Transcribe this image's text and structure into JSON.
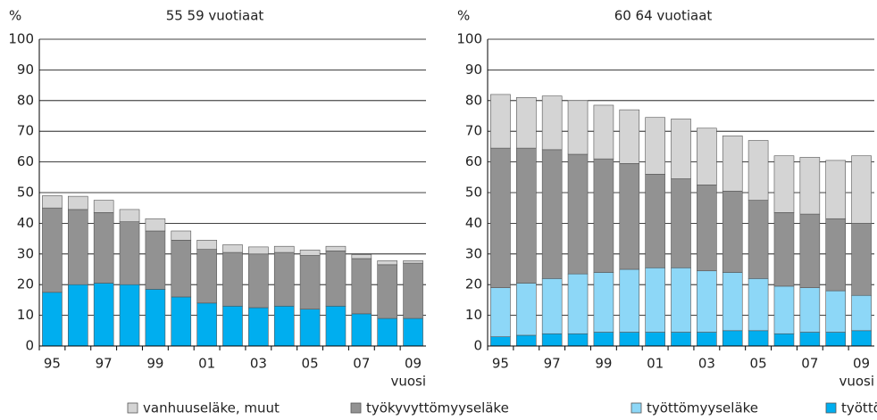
{
  "chart_data": [
    {
      "type": "stacked_bar",
      "title": "55 59 vuotiaat",
      "ylabel": "%",
      "xlabel": "vuosi",
      "categories": [
        "95",
        null,
        "97",
        null,
        "99",
        null,
        "01",
        null,
        "03",
        null,
        "05",
        null,
        "07",
        null,
        "09"
      ],
      "ylim": [
        0,
        100
      ],
      "yticks": [
        0,
        10,
        20,
        30,
        40,
        50,
        60,
        70,
        80,
        90,
        100
      ],
      "grid": true,
      "series": [
        {
          "name": "työttömät",
          "color": "#00aeef",
          "values": [
            17.5,
            20,
            20.5,
            20,
            18.5,
            16,
            14,
            13,
            12.5,
            13,
            12,
            13,
            10.5,
            9,
            9
          ]
        },
        {
          "name": "työttömyyseläke",
          "color": "#8dd7f7",
          "values": [
            0,
            0,
            0,
            0,
            0,
            0,
            0,
            0,
            0,
            0,
            0,
            0,
            0,
            0,
            0
          ]
        },
        {
          "name": "työkyvyttömyyseläke",
          "color": "#929292",
          "values": [
            27.5,
            24.5,
            23,
            20.5,
            19,
            18.5,
            17.5,
            17.5,
            17.5,
            17.5,
            17.5,
            18,
            18,
            17.5,
            18
          ]
        },
        {
          "name": "vanhuuseläke, muut",
          "color": "#d4d4d4",
          "values": [
            4,
            4.3,
            4,
            4,
            4,
            3,
            3,
            2.5,
            2.3,
            2,
            1.8,
            1.5,
            1.3,
            1.3,
            0.8
          ]
        }
      ]
    },
    {
      "type": "stacked_bar",
      "title": "60 64 vuotiaat",
      "ylabel": "%",
      "xlabel": "vuosi",
      "categories": [
        "95",
        null,
        "97",
        null,
        "99",
        null,
        "01",
        null,
        "03",
        null,
        "05",
        null,
        "07",
        null,
        "09"
      ],
      "ylim": [
        0,
        100
      ],
      "yticks": [
        0,
        10,
        20,
        30,
        40,
        50,
        60,
        70,
        80,
        90,
        100
      ],
      "grid": true,
      "series": [
        {
          "name": "työttömät",
          "color": "#00aeef",
          "values": [
            3,
            3.5,
            4,
            4,
            4.5,
            4.5,
            4.5,
            4.5,
            4.5,
            5,
            5,
            4,
            4.5,
            4.5,
            5
          ]
        },
        {
          "name": "työttömyyseläke",
          "color": "#8dd7f7",
          "values": [
            16,
            17,
            18,
            19.5,
            19.5,
            20.5,
            21,
            21,
            20,
            19,
            17,
            15.5,
            14.5,
            13.5,
            11.5
          ]
        },
        {
          "name": "työkyvyttömyyseläke",
          "color": "#929292",
          "values": [
            45.5,
            44,
            42,
            39,
            37,
            34.5,
            30.5,
            29,
            28,
            26.5,
            25.5,
            24,
            24,
            23.5,
            23.5
          ]
        },
        {
          "name": "vanhuuseläke, muut",
          "color": "#d4d4d4",
          "values": [
            17.5,
            16.5,
            17.5,
            17.5,
            17.5,
            17.5,
            18.5,
            19.5,
            18.5,
            18,
            19.5,
            18.5,
            18.5,
            19,
            22
          ]
        }
      ]
    }
  ]
}
